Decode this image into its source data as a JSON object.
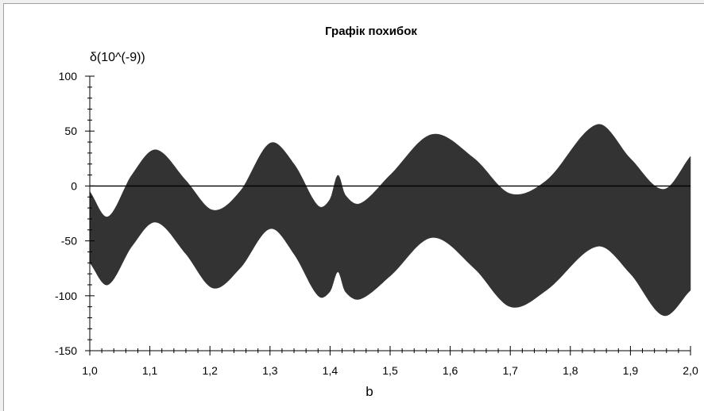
{
  "chart_data": {
    "type": "area",
    "title": "Графік похибок",
    "ylabel": "δ(10^(-9))",
    "xlabel": "b",
    "xlim": [
      1.0,
      2.0
    ],
    "ylim": [
      -150,
      100
    ],
    "x_ticks": [
      1.0,
      1.1,
      1.2,
      1.3,
      1.4,
      1.5,
      1.6,
      1.7,
      1.8,
      1.9,
      2.0
    ],
    "x_tick_labels": [
      "1,0",
      "1,1",
      "1,2",
      "1,3",
      "1,4",
      "1,5",
      "1,6",
      "1,7",
      "1,8",
      "1,9",
      "2,0"
    ],
    "y_ticks": [
      100,
      50,
      0,
      -50,
      -100,
      -150
    ],
    "y_tick_labels": [
      "100",
      "50",
      "0",
      "-50",
      "-100",
      "-150"
    ],
    "zero_line": true,
    "fill_color": "#333333",
    "series": [
      {
        "x": [
          1.0,
          1.03,
          1.07,
          1.11,
          1.16,
          1.205,
          1.25,
          1.3,
          1.34,
          1.38,
          1.4,
          1.413,
          1.425,
          1.45,
          1.5,
          1.57,
          1.64,
          1.7,
          1.76,
          1.845,
          1.9,
          1.955,
          2.0
        ],
        "upper": [
          -5,
          -28,
          10,
          33,
          5,
          -22,
          -5,
          39,
          20,
          -18,
          -12,
          10,
          -8,
          -16,
          10,
          47,
          25,
          -7,
          5,
          56,
          25,
          -3,
          27
        ],
        "lower": [
          -70,
          -90,
          -55,
          -33,
          -62,
          -93,
          -75,
          -39,
          -62,
          -100,
          -96,
          -78,
          -96,
          -103,
          -82,
          -47,
          -75,
          -110,
          -95,
          -55,
          -80,
          -118,
          -95
        ]
      }
    ]
  }
}
